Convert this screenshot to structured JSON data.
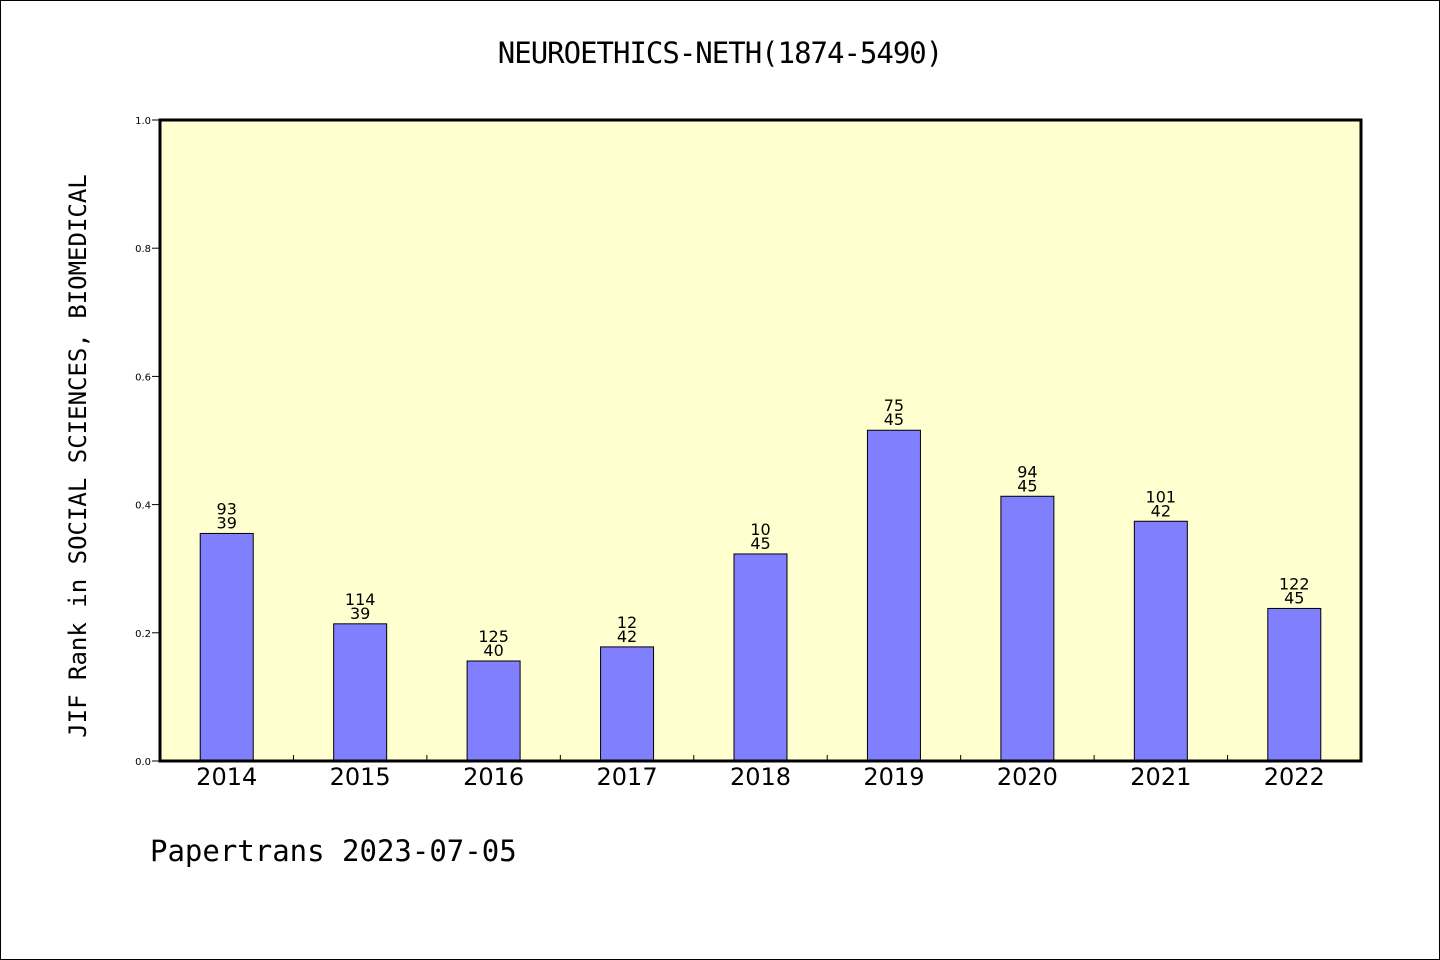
{
  "chart_data": {
    "type": "bar",
    "title": "NEUROETHICS-NETH(1874-5490)",
    "ylabel": "JIF Rank in SOCIAL SCIENCES, BIOMEDICAL",
    "xlabel": "",
    "ylim": [
      0,
      1.0
    ],
    "yticks": [
      "0.0",
      "0.2",
      "0.4",
      "0.6",
      "0.8",
      "1.0"
    ],
    "categories": [
      "2014",
      "2015",
      "2016",
      "2017",
      "2018",
      "2019",
      "2020",
      "2021",
      "2022"
    ],
    "values": [
      0.355,
      0.214,
      0.156,
      0.178,
      0.323,
      0.516,
      0.413,
      0.374,
      0.238
    ],
    "rank_labels": [
      "93",
      "114",
      "125",
      "12",
      "10",
      "75",
      "94",
      "101",
      "122"
    ],
    "total_labels": [
      "39",
      "39",
      "40",
      "42",
      "45",
      "45",
      "45",
      "42",
      "45"
    ],
    "grid": false,
    "colors": {
      "plot_bg": "#ffffd0",
      "bar": "#8080ff",
      "bar_edge": "#000000"
    }
  },
  "footer": "Papertrans 2023-07-05"
}
